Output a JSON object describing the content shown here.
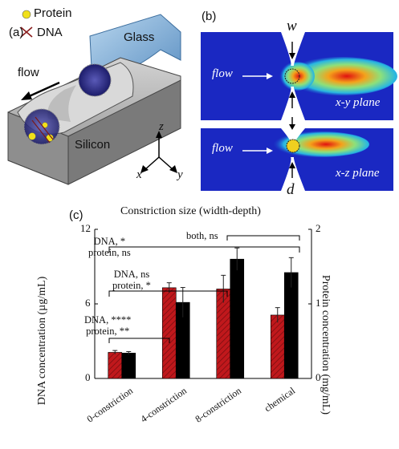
{
  "panel_a": {
    "label": "(a)",
    "legend_protein": "Protein",
    "legend_dna": "DNA",
    "flow_label": "flow",
    "glass_label": "Glass",
    "silicon_label": "Silicon",
    "axis_x": "x",
    "axis_y": "y",
    "axis_z": "z"
  },
  "panel_b": {
    "label": "(b)",
    "width_symbol": "w",
    "depth_symbol": "d",
    "top_flow": "flow",
    "bottom_flow": "flow",
    "top_plane": "x-y plane",
    "bottom_plane": "x-z plane"
  },
  "panel_c": {
    "label": "(c)",
    "annotations": {
      "a1_line1": "DNA, *",
      "a1_line2": "protein, ns",
      "a2_line1": "DNA, ns",
      "a2_line2": "protein, *",
      "a3_line1": "DNA, ****",
      "a3_line2": "protein, **",
      "a4": "both, ns"
    }
  },
  "chart_data": {
    "type": "bar",
    "title": "Constriction size (width-depth)",
    "xlabel": "",
    "ylabel_left": "DNA concentration (µg/mL)",
    "ylabel_right": "Protein concentration (mg/mL)",
    "categories": [
      "0-constriction",
      "4-constriction",
      "8-constriction",
      "chemical"
    ],
    "y_left_ticks": [
      "0",
      "6",
      "12"
    ],
    "y_right_ticks": [
      "0",
      "1",
      "2"
    ],
    "ylim_left": [
      0,
      12
    ],
    "ylim_right": [
      0,
      2
    ],
    "series": [
      {
        "axis": "left",
        "color": "#c0181c",
        "hatch": true,
        "values": [
          2.1,
          7.3,
          7.2,
          5.1
        ],
        "errors": [
          0.15,
          0.4,
          1.1,
          0.6
        ]
      },
      {
        "axis": "right",
        "color": "#000000",
        "values": [
          0.34,
          1.02,
          1.6,
          1.42
        ],
        "errors": [
          0.02,
          0.2,
          0.15,
          0.2
        ]
      }
    ],
    "colors": {
      "dna_bar": "#c0181c",
      "protein_bar": "#000000"
    }
  }
}
